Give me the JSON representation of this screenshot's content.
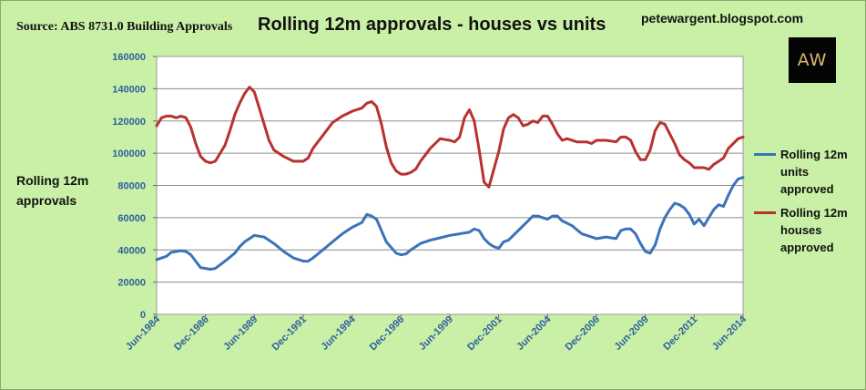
{
  "header": {
    "source": "Source: ABS 8731.0 Building Approvals",
    "title": "Rolling 12m approvals - houses vs units",
    "blog": "petewargent.blogspot.com",
    "logo_text": "AW"
  },
  "colors": {
    "background": "#c9f0a6",
    "plot_area": "#ffffff",
    "units": "#3b73b9",
    "houses": "#b8322e",
    "axis_tick_labels": "#2f5f9e"
  },
  "chart_data": {
    "type": "line",
    "title": "Rolling 12m approvals - houses vs units",
    "ylabel": "Rolling 12m approvals",
    "xlabel": "",
    "ylim": [
      0,
      160000
    ],
    "yticks": [
      0,
      20000,
      40000,
      60000,
      80000,
      100000,
      120000,
      140000,
      160000
    ],
    "y_tick_labels": [
      "0",
      "20000",
      "40000",
      "60000",
      "80000",
      "100000",
      "120000",
      "140000",
      "160000"
    ],
    "xlim": [
      "1984-06",
      "2014-06"
    ],
    "x_tick_labels": [
      "Jun-1984",
      "Dec-1986",
      "Jun-1989",
      "Dec-1991",
      "Jun-1994",
      "Dec-1996",
      "Jun-1999",
      "Dec-2001",
      "Jun-2004",
      "Dec-2006",
      "Jun-2009",
      "Dec-2011",
      "Jun-2014"
    ],
    "x_ticks": [
      "1984-06",
      "1986-12",
      "1989-06",
      "1991-12",
      "1994-06",
      "1996-12",
      "1999-06",
      "2001-12",
      "2004-06",
      "2006-12",
      "2009-06",
      "2011-12",
      "2014-06"
    ],
    "grid": "horizontal",
    "legend_position": "right",
    "series": [
      {
        "name": "Rolling 12m units approved",
        "points": [
          [
            "1984-06",
            34000
          ],
          [
            "1984-12",
            36000
          ],
          [
            "1985-03",
            38500
          ],
          [
            "1985-06",
            39000
          ],
          [
            "1985-09",
            39500
          ],
          [
            "1985-12",
            39000
          ],
          [
            "1986-03",
            37000
          ],
          [
            "1986-06",
            33000
          ],
          [
            "1986-09",
            29000
          ],
          [
            "1986-12",
            28500
          ],
          [
            "1987-03",
            28000
          ],
          [
            "1987-06",
            28500
          ],
          [
            "1987-12",
            33000
          ],
          [
            "1988-06",
            38000
          ],
          [
            "1988-09",
            42000
          ],
          [
            "1988-12",
            45000
          ],
          [
            "1989-03",
            47000
          ],
          [
            "1989-06",
            49000
          ],
          [
            "1989-12",
            48000
          ],
          [
            "1990-06",
            44000
          ],
          [
            "1990-12",
            39000
          ],
          [
            "1991-06",
            35000
          ],
          [
            "1991-12",
            33000
          ],
          [
            "1992-03",
            33000
          ],
          [
            "1992-06",
            35000
          ],
          [
            "1992-12",
            40000
          ],
          [
            "1993-06",
            45000
          ],
          [
            "1993-12",
            50000
          ],
          [
            "1994-06",
            54000
          ],
          [
            "1994-12",
            57000
          ],
          [
            "1995-03",
            62000
          ],
          [
            "1995-06",
            61000
          ],
          [
            "1995-09",
            59000
          ],
          [
            "1996-03",
            45000
          ],
          [
            "1996-09",
            38000
          ],
          [
            "1996-12",
            37000
          ],
          [
            "1997-03",
            37500
          ],
          [
            "1997-06",
            40000
          ],
          [
            "1997-12",
            44000
          ],
          [
            "1998-06",
            46000
          ],
          [
            "1998-12",
            47500
          ],
          [
            "1999-06",
            49000
          ],
          [
            "1999-12",
            50000
          ],
          [
            "2000-06",
            51000
          ],
          [
            "2000-09",
            53000
          ],
          [
            "2000-12",
            52000
          ],
          [
            "2001-03",
            47000
          ],
          [
            "2001-06",
            44000
          ],
          [
            "2001-09",
            42000
          ],
          [
            "2001-12",
            41000
          ],
          [
            "2002-03",
            45000
          ],
          [
            "2002-06",
            46000
          ],
          [
            "2002-12",
            52000
          ],
          [
            "2003-06",
            58000
          ],
          [
            "2003-09",
            61000
          ],
          [
            "2003-12",
            61000
          ],
          [
            "2004-03",
            60000
          ],
          [
            "2004-06",
            59000
          ],
          [
            "2004-09",
            61000
          ],
          [
            "2004-12",
            61000
          ],
          [
            "2005-03",
            58000
          ],
          [
            "2005-09",
            55000
          ],
          [
            "2006-03",
            50000
          ],
          [
            "2006-09",
            48000
          ],
          [
            "2006-12",
            47000
          ],
          [
            "2007-06",
            48000
          ],
          [
            "2007-12",
            47000
          ],
          [
            "2008-03",
            52000
          ],
          [
            "2008-06",
            53000
          ],
          [
            "2008-09",
            53000
          ],
          [
            "2008-12",
            50000
          ],
          [
            "2009-03",
            44000
          ],
          [
            "2009-06",
            39000
          ],
          [
            "2009-09",
            38000
          ],
          [
            "2009-12",
            43000
          ],
          [
            "2010-03",
            53000
          ],
          [
            "2010-06",
            60000
          ],
          [
            "2010-09",
            65000
          ],
          [
            "2010-12",
            69000
          ],
          [
            "2011-03",
            68000
          ],
          [
            "2011-06",
            66000
          ],
          [
            "2011-09",
            62000
          ],
          [
            "2011-12",
            56000
          ],
          [
            "2012-03",
            59000
          ],
          [
            "2012-06",
            55000
          ],
          [
            "2012-09",
            60000
          ],
          [
            "2012-12",
            65000
          ],
          [
            "2013-03",
            68000
          ],
          [
            "2013-06",
            67000
          ],
          [
            "2013-09",
            74000
          ],
          [
            "2013-12",
            80000
          ],
          [
            "2014-03",
            84000
          ],
          [
            "2014-06",
            85000
          ]
        ]
      },
      {
        "name": "Rolling 12m houses approved",
        "points": [
          [
            "1984-06",
            117000
          ],
          [
            "1984-09",
            122000
          ],
          [
            "1984-12",
            123000
          ],
          [
            "1985-03",
            123000
          ],
          [
            "1985-06",
            122000
          ],
          [
            "1985-09",
            123000
          ],
          [
            "1985-12",
            122000
          ],
          [
            "1986-03",
            116000
          ],
          [
            "1986-06",
            106000
          ],
          [
            "1986-09",
            98000
          ],
          [
            "1986-12",
            95000
          ],
          [
            "1987-03",
            94000
          ],
          [
            "1987-06",
            95000
          ],
          [
            "1987-09",
            100000
          ],
          [
            "1987-12",
            105000
          ],
          [
            "1988-03",
            114000
          ],
          [
            "1988-06",
            124000
          ],
          [
            "1988-09",
            131000
          ],
          [
            "1988-12",
            137000
          ],
          [
            "1989-03",
            141000
          ],
          [
            "1989-06",
            138000
          ],
          [
            "1989-09",
            128000
          ],
          [
            "1989-12",
            118000
          ],
          [
            "1990-03",
            108000
          ],
          [
            "1990-06",
            102000
          ],
          [
            "1990-12",
            98000
          ],
          [
            "1991-06",
            95000
          ],
          [
            "1991-12",
            95000
          ],
          [
            "1992-03",
            97000
          ],
          [
            "1992-06",
            103000
          ],
          [
            "1992-12",
            111000
          ],
          [
            "1993-06",
            119000
          ],
          [
            "1993-12",
            123000
          ],
          [
            "1994-06",
            126000
          ],
          [
            "1994-12",
            128000
          ],
          [
            "1995-03",
            131000
          ],
          [
            "1995-06",
            132000
          ],
          [
            "1995-09",
            129000
          ],
          [
            "1995-12",
            118000
          ],
          [
            "1996-03",
            104000
          ],
          [
            "1996-06",
            94000
          ],
          [
            "1996-09",
            89000
          ],
          [
            "1996-12",
            87000
          ],
          [
            "1997-03",
            87000
          ],
          [
            "1997-06",
            88000
          ],
          [
            "1997-09",
            90000
          ],
          [
            "1997-12",
            95000
          ],
          [
            "1998-06",
            103000
          ],
          [
            "1998-12",
            109000
          ],
          [
            "1999-06",
            108000
          ],
          [
            "1999-09",
            107000
          ],
          [
            "1999-12",
            110000
          ],
          [
            "2000-03",
            122000
          ],
          [
            "2000-06",
            127000
          ],
          [
            "2000-09",
            120000
          ],
          [
            "2000-12",
            102000
          ],
          [
            "2001-03",
            82000
          ],
          [
            "2001-06",
            79000
          ],
          [
            "2001-09",
            90000
          ],
          [
            "2001-12",
            101000
          ],
          [
            "2002-03",
            115000
          ],
          [
            "2002-06",
            122000
          ],
          [
            "2002-09",
            124000
          ],
          [
            "2002-12",
            122000
          ],
          [
            "2003-03",
            117000
          ],
          [
            "2003-06",
            118000
          ],
          [
            "2003-09",
            120000
          ],
          [
            "2003-12",
            119000
          ],
          [
            "2004-03",
            123000
          ],
          [
            "2004-06",
            123000
          ],
          [
            "2004-09",
            118000
          ],
          [
            "2004-12",
            112000
          ],
          [
            "2005-03",
            108000
          ],
          [
            "2005-06",
            109000
          ],
          [
            "2005-12",
            107000
          ],
          [
            "2006-06",
            107000
          ],
          [
            "2006-09",
            106000
          ],
          [
            "2006-12",
            108000
          ],
          [
            "2007-06",
            108000
          ],
          [
            "2007-12",
            107000
          ],
          [
            "2008-03",
            110000
          ],
          [
            "2008-06",
            110000
          ],
          [
            "2008-09",
            108000
          ],
          [
            "2008-12",
            101000
          ],
          [
            "2009-03",
            96000
          ],
          [
            "2009-06",
            96000
          ],
          [
            "2009-09",
            102000
          ],
          [
            "2009-12",
            114000
          ],
          [
            "2010-03",
            119000
          ],
          [
            "2010-06",
            118000
          ],
          [
            "2010-09",
            112000
          ],
          [
            "2010-12",
            106000
          ],
          [
            "2011-03",
            99000
          ],
          [
            "2011-06",
            96000
          ],
          [
            "2011-09",
            94000
          ],
          [
            "2011-12",
            91000
          ],
          [
            "2012-06",
            91000
          ],
          [
            "2012-09",
            90000
          ],
          [
            "2012-12",
            93000
          ],
          [
            "2013-03",
            95000
          ],
          [
            "2013-06",
            97000
          ],
          [
            "2013-09",
            103000
          ],
          [
            "2013-12",
            106000
          ],
          [
            "2014-03",
            109000
          ],
          [
            "2014-06",
            110000
          ]
        ]
      }
    ]
  }
}
